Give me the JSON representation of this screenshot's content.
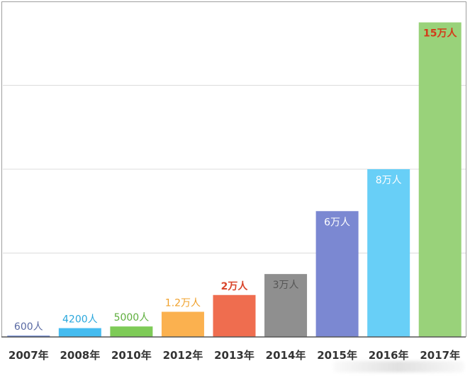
{
  "chart_data": {
    "type": "bar",
    "categories": [
      "2007年",
      "2008年",
      "2010年",
      "2012年",
      "2013年",
      "2014年",
      "2015年",
      "2016年",
      "2017年"
    ],
    "values": [
      600,
      4200,
      5000,
      12000,
      20000,
      30000,
      60000,
      80000,
      150000
    ],
    "data_labels": [
      "600人",
      "4200人",
      "5000人",
      "1.2万人",
      "2万人",
      "3万人",
      "6万人",
      "8万人",
      "15万人"
    ],
    "colors": [
      "#5b7bd0",
      "#45bcf0",
      "#7ecb57",
      "#fbb14f",
      "#ef6d4f",
      "#8f8f8f",
      "#7b88d2",
      "#68cff7",
      "#99d27a"
    ],
    "label_colors": [
      "#5a6aa3",
      "#2aa7dc",
      "#5eae3d",
      "#f0a02a",
      "#d9452b",
      "#555555",
      "#ffffff",
      "#ffffff",
      "#d33b1a"
    ],
    "ylim": [
      0,
      160000
    ],
    "gridlines": [
      40000,
      80000,
      120000
    ],
    "grid": true,
    "legend": "none",
    "title": "",
    "xlabel": "",
    "ylabel": ""
  }
}
